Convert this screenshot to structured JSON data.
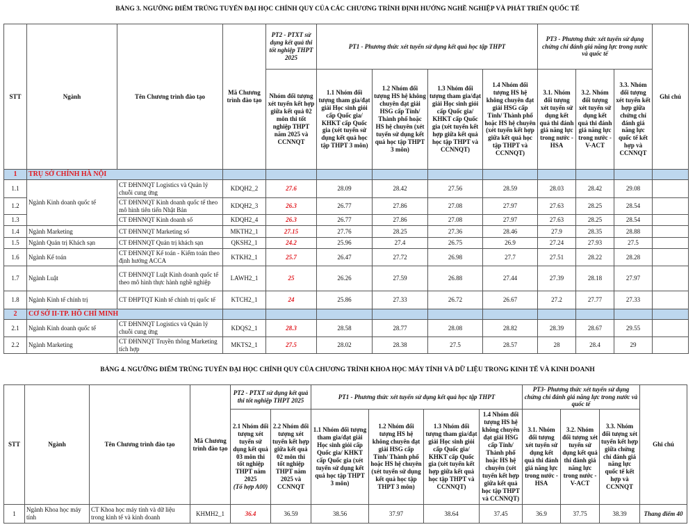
{
  "table3": {
    "title": "BẢNG 3. NGƯỠNG ĐIỂM TRÚNG TUYỂN ĐẠI HỌC CHÍNH QUY CỦA CÁC CHƯƠNG TRÌNH ĐỊNH HƯỚNG NGHỀ NGHIỆP VÀ PHÁT TRIỂN QUỐC TẾ",
    "headers": {
      "stt": "STT",
      "nganh": "Ngành",
      "ten": "Tên Chương trình đào tạo",
      "ma": "Mã Chương trình đào tạo",
      "pt2": "PT2 - PTXT sử dụng kết quả thi tốt nghiệp THPT 2025",
      "pt1": "PT1 - Phương thức xét tuyển sử dụng kết quả học tập THPT",
      "pt3": "PT3 - Phương thức xét tuyển sử dụng chứng chỉ đánh giá năng lực trong nước và quốc tế",
      "ghichu": "Ghi chú",
      "sub": [
        "Nhóm đối tượng xét tuyển kết hợp giữa kết quả 02 môn thi tốt nghiệp THPT năm 2025 và CCNNQT",
        "1.1 Nhóm đối tượng tham gia/đạt giải Học sinh giỏi cấp Quốc gia/ KHKT cấp Quốc gia (xét tuyển sử dụng kết quả học tập THPT 3 môn)",
        "1.2 Nhóm đối tượng HS hệ không chuyên đạt giải HSG cấp Tỉnh/ Thành phố hoặc HS hệ chuyên (xét tuyển sử dụng kết quả học tập THPT 3 môn)",
        "1.3 Nhóm đối tượng tham gia/đạt giải Học sinh giỏi cấp Quốc gia/ KHKT cấp Quốc gia (xét tuyển kết hợp giữa kết quả học tập THPT và CCNNQT)",
        "1.4 Nhóm đối tượng HS hệ không chuyên đạt giải HSG cấp Tỉnh/ Thành phố hoặc HS hệ chuyên (xét tuyển kết hợp giữa kết quả học tập THPT và CCNNQT)",
        "3.1. Nhóm đối tượng xét tuyển sử dụng kết quả thi đánh giá năng lực trong nước - HSA",
        "3.2. Nhóm đối tượng xét tuyển sử dụng kết quả thi đánh giá năng lực trong nước - V-ACT",
        "3.3. Nhóm đối tượng xét tuyển kết hợp giữa chứng chỉ đánh giá năng lực quốc tế kết hợp và CCNNQT"
      ]
    },
    "sections": [
      {
        "stt": "1",
        "name": "TRỤ SỞ CHÍNH HÀ NỘI",
        "rows": [
          {
            "stt": "1.1",
            "nganh": "Ngành Kinh doanh quốc tế",
            "span": 3,
            "ten": "CT ĐHNNQT Logistics và Quản lý chuỗi cung ứng",
            "ma": "KDQH2_2",
            "scores": [
              "27.6",
              "28.09",
              "28.42",
              "27.56",
              "28.59",
              "28.03",
              "28.42",
              "29.08"
            ],
            "note": ""
          },
          {
            "stt": "1.2",
            "ten": "CT ĐHNNQT Kinh doanh quốc tế theo mô hình tiên tiến Nhật Bản",
            "ma": "KDQH2_3",
            "scores": [
              "26.3",
              "26.77",
              "27.86",
              "27.08",
              "27.97",
              "27.63",
              "28.25",
              "28.54"
            ],
            "note": ""
          },
          {
            "stt": "1.3",
            "ten": "CT ĐHNNQT Kinh doanh số",
            "ma": "KDQH2_4",
            "scores": [
              "26.3",
              "26.77",
              "27.86",
              "27.08",
              "27.97",
              "27.63",
              "28.25",
              "28.54"
            ],
            "note": ""
          },
          {
            "stt": "1.4",
            "nganh": "Ngành Marketing",
            "ten": "CT ĐHNNQT Marketing số",
            "ma": "MKTH2_1",
            "scores": [
              "27.15",
              "27.76",
              "28.25",
              "27.36",
              "28.46",
              "27.9",
              "28.35",
              "28.88"
            ],
            "note": ""
          },
          {
            "stt": "1.5",
            "nganh": "Ngành Quản trị Khách sạn",
            "ten": "CT ĐHNNQT Quản trị khách sạn",
            "ma": "QKSH2_1",
            "scores": [
              "24.2",
              "25.96",
              "27.4",
              "26.75",
              "26.9",
              "27.24",
              "27.93",
              "27.5"
            ],
            "note": ""
          },
          {
            "stt": "1.6",
            "nganh": "Ngành Kế toán",
            "ten": "CT ĐHNNQT Kế toán - Kiểm toán theo định hướng ACCA",
            "ma": "KTKH2_1",
            "scores": [
              "25.7",
              "26.47",
              "27.72",
              "26.98",
              "27.7",
              "27.51",
              "28.22",
              "28.28"
            ],
            "note": ""
          },
          {
            "stt": "1.7",
            "nganh": "Ngành Luật",
            "ten": "CT ĐHNNQT Luật Kinh doanh quốc tế theo mô hình thực hành nghề nghiệp",
            "ma": "LAWH2_1",
            "scores": [
              "25",
              "26.26",
              "27.59",
              "26.88",
              "27.44",
              "27.39",
              "28.18",
              "27.97"
            ],
            "note": ""
          },
          {
            "stt": "1.8",
            "nganh": "Ngành Kinh tế chính trị",
            "ten": "CT ĐHPTQT Kinh tế chính trị quốc tế",
            "ma": "KTCH2_1",
            "scores": [
              "24",
              "25.86",
              "27.33",
              "26.72",
              "26.67",
              "27.2",
              "27.77",
              "27.33"
            ],
            "note": ""
          }
        ]
      },
      {
        "stt": "2",
        "name": "CƠ SỞ II-TP. HỒ CHÍ MINH",
        "rows": [
          {
            "stt": "2.1",
            "nganh": "Ngành Kinh doanh quốc tế",
            "ten": "CT ĐHNNQT Logistics và Quản lý chuỗi cung ứng",
            "ma": "KDQS2_1",
            "scores": [
              "28.3",
              "28.58",
              "28.77",
              "28.08",
              "28.82",
              "28.39",
              "28.67",
              "29.55"
            ],
            "note": ""
          },
          {
            "stt": "2.2",
            "nganh": "Ngành Marketing",
            "ten": "CT ĐHNNQT Truyền thông Marketing tích hợp",
            "ma": "MKTS2_1",
            "scores": [
              "27.5",
              "28.02",
              "28.38",
              "27.5",
              "28.57",
              "28",
              "28.4",
              "29"
            ],
            "note": ""
          }
        ]
      }
    ]
  },
  "table4": {
    "title": "BẢNG 4. NGƯỠNG ĐIỂM TRÚNG TUYỂN ĐẠI HỌC CHÍNH QUY CỦA CHƯƠNG TRÌNH KHOA HỌC MÁY TÍNH VÀ DỮ LIỆU TRONG KINH TẾ VÀ KINH DOANH",
    "headers": {
      "stt": "STT",
      "nganh": "Ngành",
      "ten": "Tên Chương trình đào tạo",
      "ma": "Mã Chương trình đào tạo",
      "pt2": "PT2 - PTXT sử dụng kết quả thi tốt nghiệp THPT 2025",
      "pt1": "PT1 - Phương thức xét tuyển sử dụng kết quả học tập THPT",
      "pt3": "PT3- Phương thức xét tuyển sử dụng chứng chỉ đánh giá năng lực trong nước và quốc tế",
      "ghichu": "Ghi chú",
      "sub21": "2.1 Nhóm đối tượng xét tuyển sử dụng kết quả 03 môn thi tốt nghiệp THPT năm 2025",
      "sub21_note": "(Tổ hợp A00)",
      "sub": [
        "2.2 Nhóm đối tượng xét tuyển kết hợp giữa kết quả 02 môn thi tốt nghiệp THPT năm 2025 và CCNNQT",
        "1.1 Nhóm đối tượng tham gia/đạt giải Học sinh giỏi cấp Quốc gia/ KHKT cấp Quốc gia (xét tuyển sử dụng kết quả học tập THPT 3 môn)",
        "1.2 Nhóm đối tượng HS hệ không chuyên đạt giải HSG cấp Tỉnh/ Thành phố hoặc HS hệ chuyên (xét tuyển sử dụng kết quả học tập THPT 3 môn)",
        "1.3 Nhóm đối tượng tham gia/đạt giải Học sinh giỏi cấp Quốc gia/ KHKT cấp Quốc gia (xét tuyển kết hợp giữa kết quả học tập THPT và CCNNQT)",
        "1.4 Nhóm đối tượng HS hệ không chuyên đạt giải HSG cấp Tỉnh/ Thành phố hoặc HS hệ chuyên (xét tuyển kết hợp giữa kết quả học tập THPT và CCNNQT)",
        "3.1. Nhóm đối tượng xét tuyển sử dụng kết quả thi đánh giá năng lực trong nước - HSA",
        "3.2. Nhóm đối tượng xét tuyển sử dụng kết quả thi đánh giá năng lực trong nước - V-ACT",
        "3.3. Nhóm đối tượng xét tuyển kết hợp giữa chứng chỉ đánh giá năng lực quốc tế kết hợp và CCNNQT"
      ]
    },
    "rows": [
      {
        "stt": "1",
        "nganh": "Ngành Khoa học máy tính",
        "ten": "CT Khoa học máy tính và dữ liệu trong kinh tế và kinh doanh",
        "ma": "KHMH2_1",
        "scores": [
          "36.4",
          "36.59",
          "38.56",
          "37.97",
          "38.64",
          "37.45",
          "36.9",
          "37.75",
          "38.39"
        ],
        "note": "Thang điểm 40"
      }
    ]
  },
  "colors": {
    "highlight_text": "#e0191f",
    "section_bg": "#bdd7ee"
  }
}
